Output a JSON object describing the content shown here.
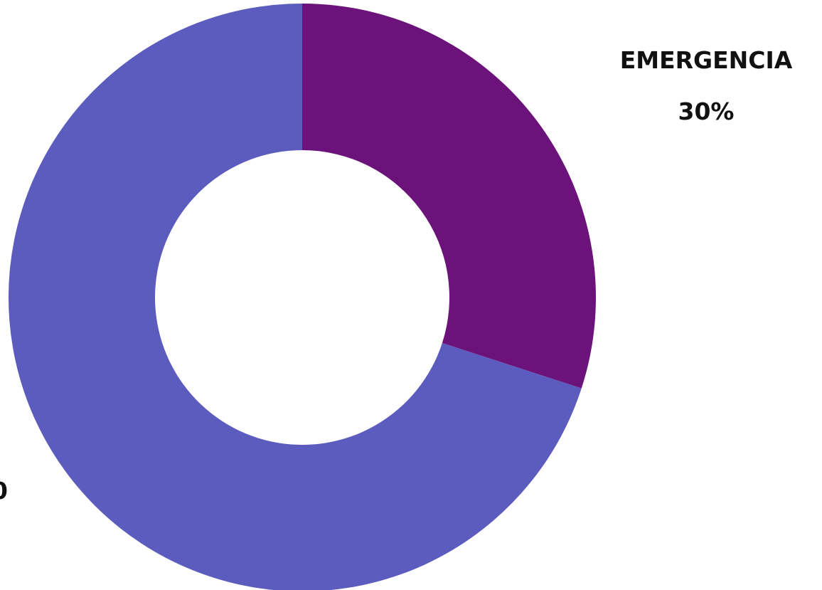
{
  "chart_data": {
    "type": "pie",
    "variant": "donut",
    "title": "",
    "series": [
      {
        "values": [
          {
            "label": "EMERGENCIA",
            "value": 30,
            "display": "30%",
            "color": "#6C137B"
          },
          {
            "label": "",
            "value": 70,
            "display": "",
            "color": "#5C5BBE"
          }
        ]
      }
    ],
    "slices": [
      {
        "label": "EMERGENCIA",
        "value": 30,
        "display": "30%",
        "color": "#6C137B"
      },
      {
        "label": "",
        "value": 70,
        "display": "",
        "color": "#5C5BBE"
      }
    ],
    "legend": "none"
  }
}
